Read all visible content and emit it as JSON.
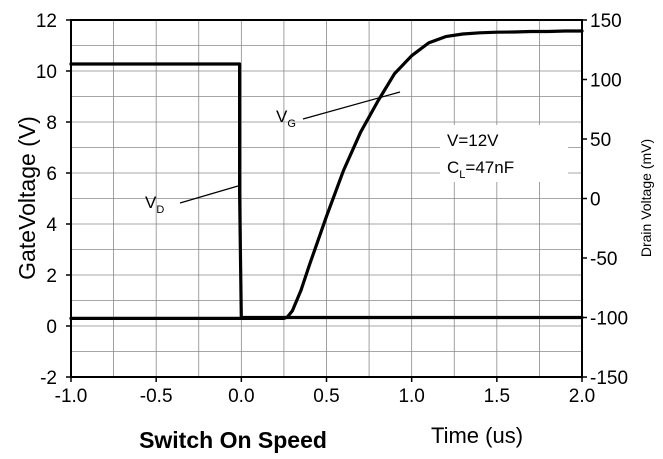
{
  "chart_data": {
    "type": "line",
    "title": "Switch On Speed",
    "xlabel": "Time (us)",
    "ylabel": "GateVoltage (V)",
    "y2label": "Drain Voltage (mV)",
    "xlim": [
      -1.0,
      2.0
    ],
    "ylim": [
      -2,
      12
    ],
    "y2lim": [
      -150,
      150
    ],
    "grid": true,
    "x_ticks": [
      "-1.0",
      "-0.5",
      "0.0",
      "0.5",
      "1.0",
      "1.5",
      "2.0"
    ],
    "y_ticks": [
      "-2",
      "0",
      "2",
      "4",
      "6",
      "8",
      "10",
      "12"
    ],
    "y2_ticks": [
      "-150",
      "-100",
      "-50",
      "0",
      "50",
      "100",
      "150"
    ],
    "series": [
      {
        "name": "V_G",
        "axis": "left",
        "x": [
          -1.0,
          0.0,
          0.25,
          0.27,
          0.3,
          0.35,
          0.4,
          0.5,
          0.6,
          0.7,
          0.8,
          0.9,
          1.0,
          1.1,
          1.2,
          1.3,
          1.4,
          1.5,
          1.6,
          1.7,
          1.8,
          1.9,
          2.0
        ],
        "y": [
          0.3,
          0.3,
          0.3,
          0.35,
          0.6,
          1.4,
          2.4,
          4.3,
          6.1,
          7.6,
          8.8,
          9.9,
          10.6,
          11.1,
          11.35,
          11.45,
          11.5,
          11.52,
          11.53,
          11.55,
          11.55,
          11.57,
          11.57
        ]
      },
      {
        "name": "V_D",
        "axis": "right",
        "x": [
          -1.0,
          -0.01,
          -0.01,
          0.0,
          0.01,
          0.01,
          2.0
        ],
        "y": [
          113,
          113,
          5,
          -100,
          -100,
          -100,
          -100
        ]
      }
    ],
    "annotations": {
      "vg_main": "V",
      "vg_sub": "G",
      "vd_main": "V",
      "vd_sub": "D",
      "v_line": "V=12V",
      "cl_main": "C",
      "cl_sub": "L",
      "cl_rest": "=47nF"
    }
  }
}
